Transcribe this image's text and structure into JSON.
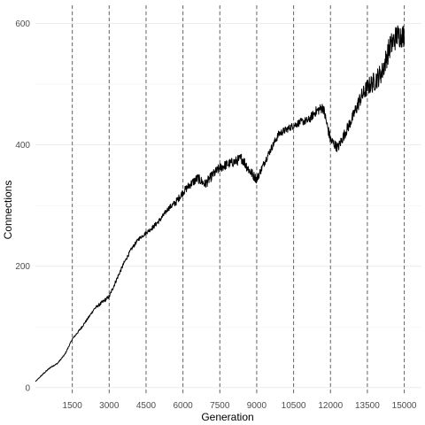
{
  "chart_data": {
    "type": "line",
    "title": "",
    "xlabel": "Generation",
    "ylabel": "Connections",
    "xlim": [
      0,
      15700
    ],
    "ylim": [
      -12,
      630
    ],
    "x_ticks": [
      1500,
      3000,
      4500,
      6000,
      7500,
      9000,
      10500,
      12000,
      13500,
      15000
    ],
    "x_tick_labels": [
      "1500",
      "3000",
      "4500",
      "6000",
      "7500",
      "9000",
      "10500",
      "12000",
      "13500",
      "15000"
    ],
    "y_ticks": [
      0,
      200,
      400,
      600
    ],
    "y_tick_labels": [
      "0",
      "200",
      "400",
      "600"
    ],
    "y_minor_ticks": [
      100,
      300,
      500
    ],
    "vlines": [
      1500,
      3000,
      4500,
      6000,
      7500,
      9000,
      10500,
      12000,
      13500,
      15000
    ],
    "grid": true,
    "legend": "none",
    "series": [
      {
        "color": "#000000",
        "x": [
          0,
          300,
          600,
          900,
          1200,
          1500,
          1800,
          2100,
          2400,
          2700,
          3000,
          3300,
          3600,
          3900,
          4200,
          4500,
          4800,
          5100,
          5400,
          5700,
          6000,
          6300,
          6600,
          6900,
          7200,
          7500,
          7800,
          8100,
          8400,
          8700,
          9000,
          9300,
          9600,
          9900,
          10200,
          10500,
          10800,
          11100,
          11400,
          11700,
          12000,
          12300,
          12600,
          12900,
          13200,
          13500,
          13800,
          14100,
          14400,
          14700,
          15000
        ],
        "y": [
          10,
          22,
          33,
          40,
          55,
          80,
          95,
          112,
          130,
          140,
          150,
          178,
          205,
          228,
          245,
          255,
          265,
          278,
          295,
          305,
          322,
          335,
          345,
          335,
          350,
          362,
          368,
          372,
          378,
          358,
          343,
          370,
          395,
          418,
          425,
          432,
          438,
          440,
          455,
          462,
          408,
          395,
          420,
          445,
          475,
          495,
          505,
          520,
          560,
          580,
          580
        ],
        "noise": [
          0,
          1,
          1,
          1,
          1,
          1,
          2,
          2,
          2,
          3,
          3,
          3,
          3,
          3,
          3,
          3,
          4,
          4,
          4,
          6,
          6,
          7,
          8,
          8,
          8,
          8,
          8,
          8,
          9,
          9,
          7,
          6,
          6,
          6,
          6,
          6,
          6,
          7,
          8,
          9,
          9,
          8,
          9,
          10,
          13,
          14,
          17,
          17,
          20,
          20,
          20
        ]
      }
    ]
  }
}
